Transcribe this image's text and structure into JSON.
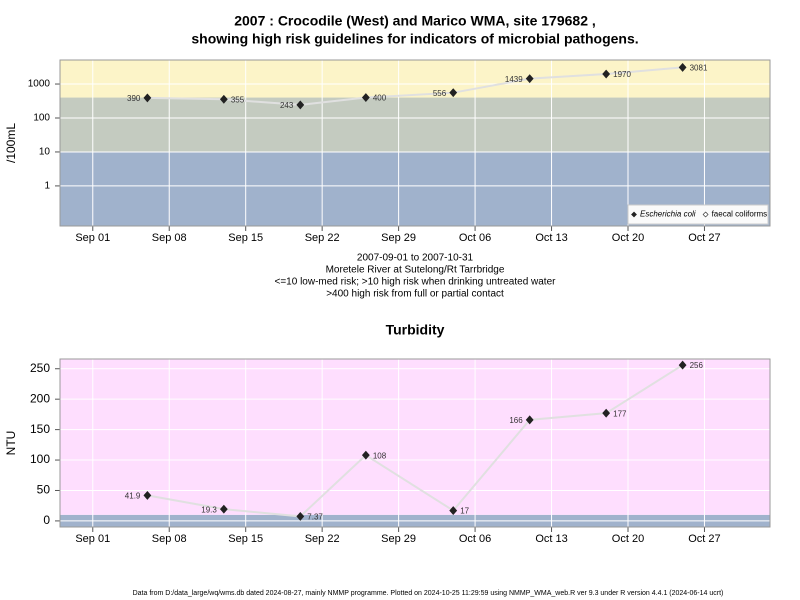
{
  "title_lines": [
    "2007 : Crocodile (West) and Marico WMA, site 179682 ,",
    "showing high risk guidelines for indicators of microbial pathogens."
  ],
  "footer": "Data from D:/data_large/wq/wms.db dated 2024-08-27, mainly NMMP programme. Plotted on 2024-10-25 11:29:59 using NMMP_WMA_web.R ver 9.3 under R version 4.4.1 (2024-06-14 ucrt)",
  "chart_data": [
    {
      "type": "line",
      "ylabel": "/100mL",
      "log_scale": true,
      "grid": true,
      "legend_position": "bottom-right",
      "x": [
        "2007-09-06",
        "2007-09-13",
        "2007-09-20",
        "2007-09-26",
        "2007-10-04",
        "2007-10-11",
        "2007-10-18",
        "2007-10-25"
      ],
      "series": [
        {
          "name": "Escherichia coli",
          "color": "#e0e0e0",
          "marker_color": "#222222",
          "values": [
            390,
            355,
            243,
            400,
            556,
            1439,
            1970,
            3081
          ]
        },
        {
          "name": "faecal coliforms",
          "color": "#e0e0e0",
          "marker_color": "#ffffff",
          "values": [
            null,
            null,
            null,
            null,
            null,
            null,
            null,
            null
          ]
        }
      ],
      "xlim": [
        "2007-08-29",
        "2007-11-02"
      ],
      "xticks": [
        {
          "value": "2007-09-01",
          "label": "Sep 01"
        },
        {
          "value": "2007-09-08",
          "label": "Sep 08"
        },
        {
          "value": "2007-09-15",
          "label": "Sep 15"
        },
        {
          "value": "2007-09-22",
          "label": "Sep 22"
        },
        {
          "value": "2007-09-29",
          "label": "Sep 29"
        },
        {
          "value": "2007-10-06",
          "label": "Oct 06"
        },
        {
          "value": "2007-10-13",
          "label": "Oct 13"
        },
        {
          "value": "2007-10-20",
          "label": "Oct 20"
        },
        {
          "value": "2007-10-27",
          "label": "Oct 27"
        }
      ],
      "ylim": [
        0.066,
        5100
      ],
      "yticks": [
        1,
        10,
        100,
        1000
      ],
      "bands": [
        {
          "max": 10,
          "color": "#a0b2cc"
        },
        {
          "min": 10,
          "max": 400,
          "color": "#c4cbc0"
        },
        {
          "min": 400,
          "color": "#fcf4c8"
        }
      ],
      "annotations": [
        "2007-09-01 to 2007-10-31",
        "Moretele River at Sutelong/Rt Tarrbridge",
        "<=10 low-med risk; >10 high risk when drinking untreated water",
        ">400 high risk from full or partial contact"
      ]
    },
    {
      "type": "line",
      "title": "Turbidity",
      "ylabel": "NTU",
      "log_scale": false,
      "grid": true,
      "x": [
        "2007-09-06",
        "2007-09-13",
        "2007-09-20",
        "2007-09-26",
        "2007-10-04",
        "2007-10-11",
        "2007-10-18",
        "2007-10-25"
      ],
      "series": [
        {
          "name": "Turbidity",
          "color": "#e0e0e0",
          "marker_color": "#222222",
          "values": [
            41.9,
            19.3,
            7.37,
            108,
            17,
            166,
            177,
            256
          ]
        }
      ],
      "xlim": [
        "2007-08-29",
        "2007-11-02"
      ],
      "xticks": [
        {
          "value": "2007-09-01",
          "label": "Sep 01"
        },
        {
          "value": "2007-09-08",
          "label": "Sep 08"
        },
        {
          "value": "2007-09-15",
          "label": "Sep 15"
        },
        {
          "value": "2007-09-22",
          "label": "Sep 22"
        },
        {
          "value": "2007-09-29",
          "label": "Sep 29"
        },
        {
          "value": "2007-10-06",
          "label": "Oct 06"
        },
        {
          "value": "2007-10-13",
          "label": "Oct 13"
        },
        {
          "value": "2007-10-20",
          "label": "Oct 20"
        },
        {
          "value": "2007-10-27",
          "label": "Oct 27"
        }
      ],
      "ylim": [
        -10,
        266
      ],
      "yticks": [
        0,
        50,
        100,
        150,
        200,
        250
      ],
      "bands": [
        {
          "max": 10,
          "color": "#a0b2cc"
        },
        {
          "min": 10,
          "color": "#fedefe"
        }
      ]
    }
  ]
}
